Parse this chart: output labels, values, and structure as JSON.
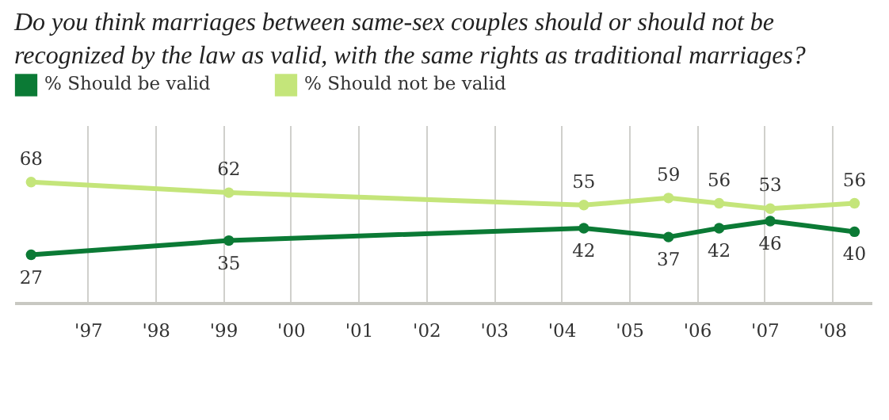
{
  "chart_data": {
    "type": "line",
    "title": "Do you think marriages between same-sex couples should or should not be recognized by the law as valid, with the same rights as traditional marriages?",
    "x": [
      "1996-03",
      "1999-02",
      "2004-05",
      "2005-08",
      "2006-05",
      "2007-02",
      "2008-05"
    ],
    "series": [
      {
        "name": "% Should be valid",
        "color": "#0b7a35",
        "values": [
          27,
          35,
          42,
          37,
          42,
          46,
          40
        ]
      },
      {
        "name": "% Should not be valid",
        "color": "#c4e57a",
        "values": [
          68,
          62,
          55,
          59,
          56,
          53,
          56
        ]
      }
    ],
    "xlim": [
      "1995-12",
      "2008-08"
    ],
    "xticks": [
      {
        "value": "1997",
        "label": "'97"
      },
      {
        "value": "1998",
        "label": "'98"
      },
      {
        "value": "1999",
        "label": "'99"
      },
      {
        "value": "2000",
        "label": "'00"
      },
      {
        "value": "2001",
        "label": "'01"
      },
      {
        "value": "2002",
        "label": "'02"
      },
      {
        "value": "2003",
        "label": "'03"
      },
      {
        "value": "2004",
        "label": "'04"
      },
      {
        "value": "2005",
        "label": "'05"
      },
      {
        "value": "2006",
        "label": "'06"
      },
      {
        "value": "2007",
        "label": "'07"
      },
      {
        "value": "2008",
        "label": "'08"
      }
    ],
    "ylim": [
      0,
      100
    ],
    "tick_labels": "x",
    "grid": "x",
    "legend": "top left",
    "marker": "circle",
    "line_style": "solid",
    "data_labels": true
  }
}
